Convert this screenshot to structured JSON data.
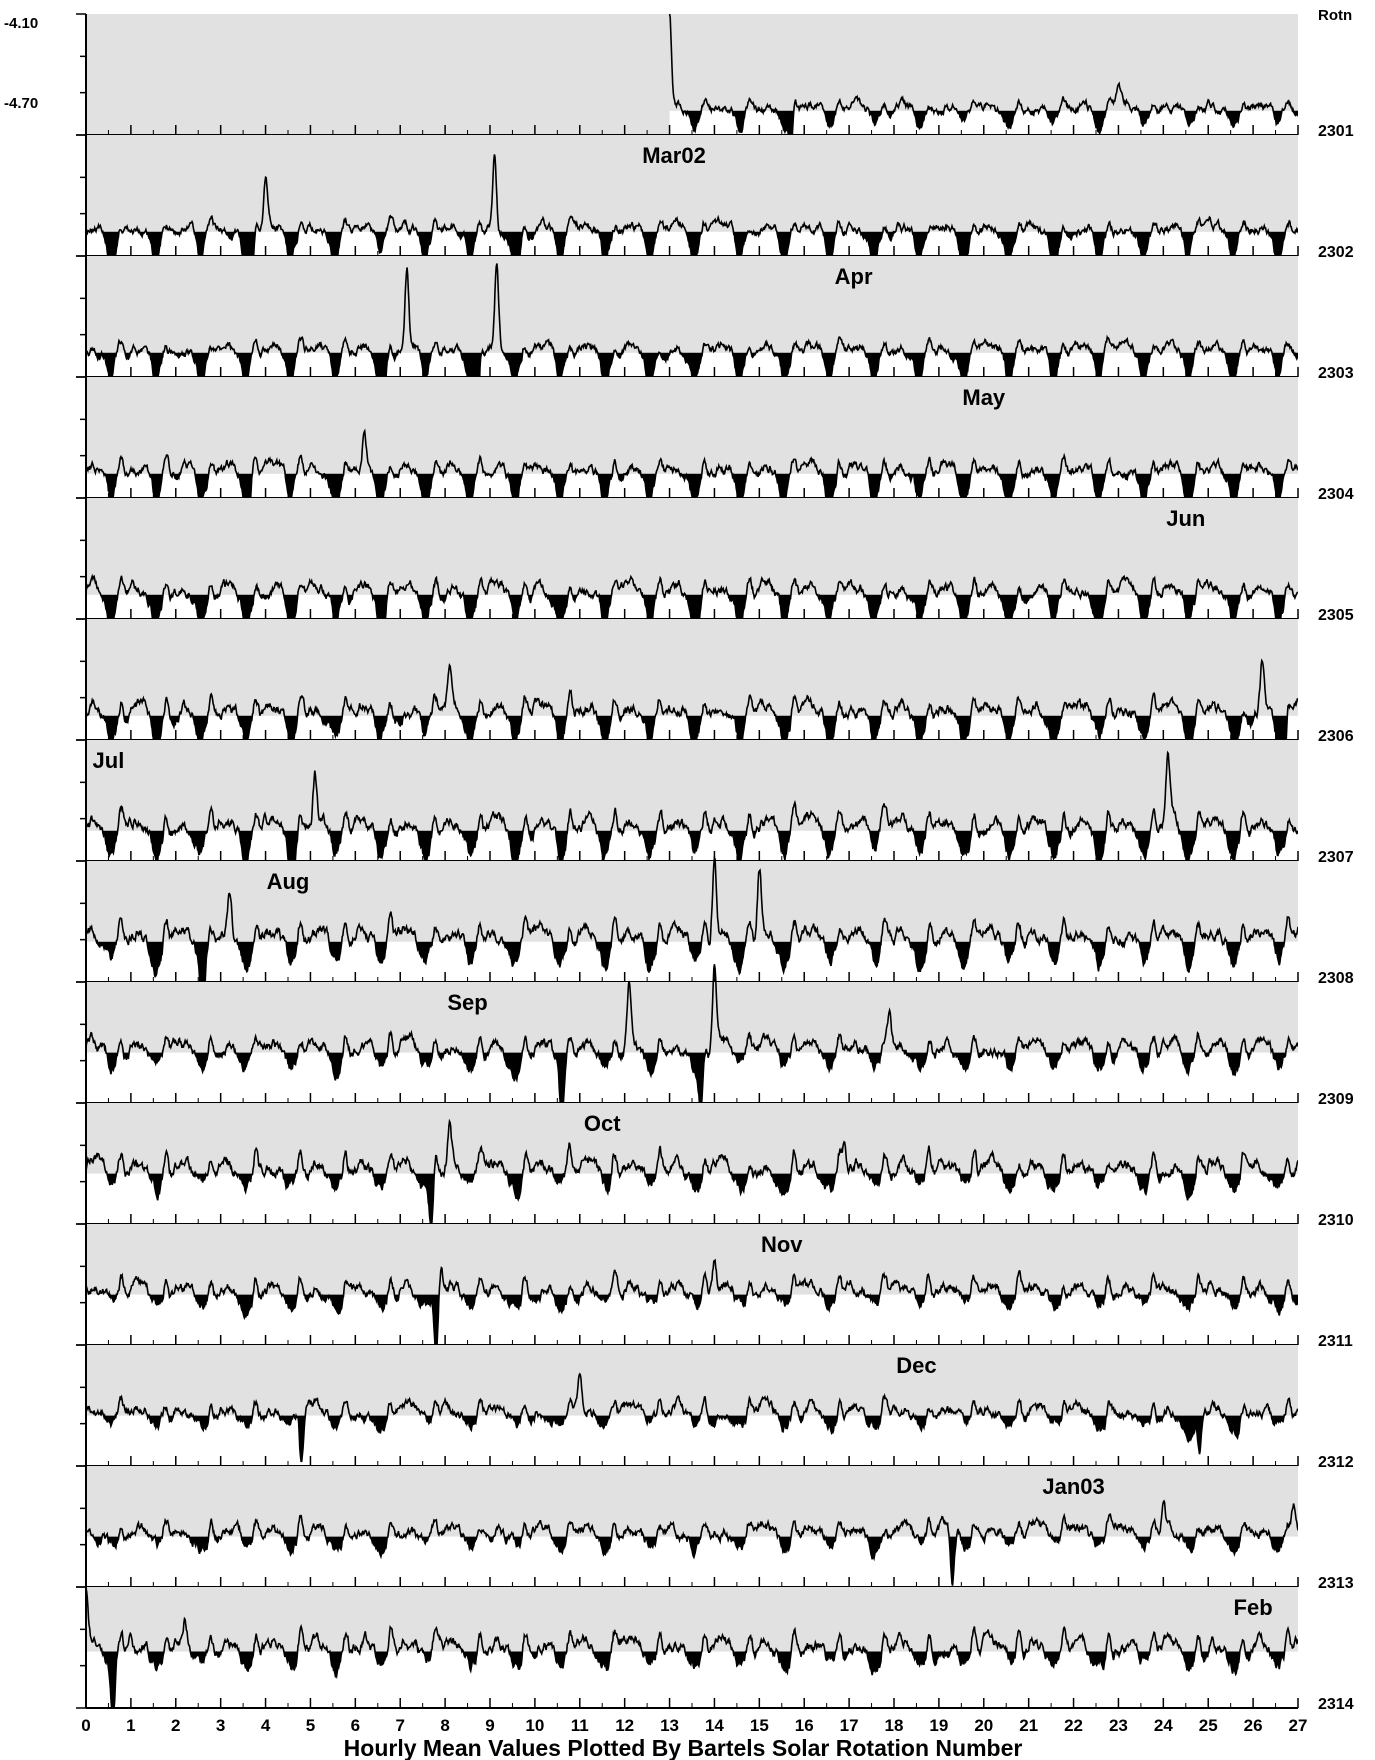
{
  "chart_data": {
    "type": "area",
    "title": "",
    "xlabel": "Hourly Mean Values Plotted By Bartels Solar Rotation Number",
    "ylabel": "",
    "xlim": [
      0,
      27
    ],
    "x_ticks": [
      "0",
      "1",
      "2",
      "3",
      "4",
      "5",
      "6",
      "7",
      "8",
      "9",
      "10",
      "11",
      "12",
      "13",
      "14",
      "15",
      "16",
      "17",
      "18",
      "19",
      "20",
      "21",
      "22",
      "23",
      "24",
      "25",
      "26",
      "27"
    ],
    "y_tick_labels": [
      "-4.10",
      "-4.70"
    ],
    "ylim_per_panel": [
      -4.7,
      -4.1
    ],
    "rotation_header": "Rotn",
    "rotations": [
      "2301",
      "2302",
      "2303",
      "2304",
      "2305",
      "2306",
      "2307",
      "2308",
      "2309",
      "2310",
      "2311",
      "2312",
      "2313",
      "2314"
    ],
    "month_labels": [
      {
        "text": "Mar02",
        "rotation": "2302",
        "day": 13.1
      },
      {
        "text": "Apr",
        "rotation": "2303",
        "day": 17.1
      },
      {
        "text": "May",
        "rotation": "2304",
        "day": 20.0
      },
      {
        "text": "Jun",
        "rotation": "2305",
        "day": 24.5
      },
      {
        "text": "Jul",
        "rotation": "2307",
        "day": 0.5
      },
      {
        "text": "Aug",
        "rotation": "2308",
        "day": 4.5
      },
      {
        "text": "Sep",
        "rotation": "2309",
        "day": 8.5
      },
      {
        "text": "Oct",
        "rotation": "2310",
        "day": 11.5
      },
      {
        "text": "Nov",
        "rotation": "2311",
        "day": 15.5
      },
      {
        "text": "Dec",
        "rotation": "2312",
        "day": 18.5
      },
      {
        "text": "Jan03",
        "rotation": "2313",
        "day": 22.0
      },
      {
        "text": "Feb",
        "rotation": "2314",
        "day": 26.0
      }
    ],
    "series_profile": [
      {
        "rotation": "2301",
        "start_day": 13.0,
        "baseline": -4.58,
        "amplitude": 0.05,
        "dip": 0.06,
        "spikes": [
          [
            13.0,
            -4.1
          ],
          [
            15.7,
            -4.75
          ],
          [
            23.0,
            -4.5
          ]
        ]
      },
      {
        "rotation": "2302",
        "start_day": 0,
        "baseline": -4.58,
        "amplitude": 0.06,
        "dip": 0.14,
        "spikes": [
          [
            4.0,
            -4.35
          ],
          [
            9.1,
            -4.2
          ],
          [
            3.7,
            -4.8
          ],
          [
            9.6,
            -4.8
          ]
        ]
      },
      {
        "rotation": "2303",
        "start_day": 0,
        "baseline": -4.58,
        "amplitude": 0.06,
        "dip": 0.14,
        "spikes": [
          [
            7.15,
            -4.2
          ],
          [
            9.15,
            -4.15
          ],
          [
            6.6,
            -5.1
          ],
          [
            8.7,
            -5.25
          ]
        ]
      },
      {
        "rotation": "2304",
        "start_day": 0,
        "baseline": -4.58,
        "amplitude": 0.08,
        "dip": 0.13,
        "spikes": [
          [
            3.6,
            -4.95
          ],
          [
            6.2,
            -4.4
          ]
        ]
      },
      {
        "rotation": "2305",
        "start_day": 0,
        "baseline": -4.58,
        "amplitude": 0.09,
        "dip": 0.12,
        "spikes": [
          [
            6.6,
            -4.85
          ]
        ]
      },
      {
        "rotation": "2306",
        "start_day": 0,
        "baseline": -4.58,
        "amplitude": 0.11,
        "dip": 0.1,
        "spikes": [
          [
            8.1,
            -4.35
          ],
          [
            26.2,
            -4.35
          ],
          [
            26.7,
            -4.8
          ]
        ]
      },
      {
        "rotation": "2307",
        "start_day": 0,
        "baseline": -4.55,
        "amplitude": 0.12,
        "dip": 0.09,
        "spikes": [
          [
            5.1,
            -4.3
          ],
          [
            24.1,
            -4.25
          ],
          [
            4.6,
            -4.8
          ]
        ]
      },
      {
        "rotation": "2308",
        "start_day": 0,
        "baseline": -4.5,
        "amplitude": 0.12,
        "dip": 0.08,
        "spikes": [
          [
            3.2,
            -4.3
          ],
          [
            14.0,
            -4.1
          ],
          [
            15.0,
            -4.15
          ],
          [
            2.6,
            -4.78
          ]
        ]
      },
      {
        "rotation": "2309",
        "start_day": 0,
        "baseline": -4.45,
        "amplitude": 0.1,
        "dip": 0.05,
        "spikes": [
          [
            12.1,
            -4.1
          ],
          [
            14.0,
            -4.05
          ],
          [
            17.9,
            -4.25
          ],
          [
            10.6,
            -4.75
          ],
          [
            13.7,
            -4.7
          ]
        ]
      },
      {
        "rotation": "2310",
        "start_day": 0,
        "baseline": -4.45,
        "amplitude": 0.13,
        "dip": 0.03,
        "spikes": [
          [
            8.1,
            -4.25
          ],
          [
            16.9,
            -4.25
          ],
          [
            7.7,
            -4.7
          ]
        ]
      },
      {
        "rotation": "2311",
        "start_day": 0,
        "baseline": -4.45,
        "amplitude": 0.1,
        "dip": 0.02,
        "spikes": [
          [
            7.9,
            -4.3
          ],
          [
            14.0,
            -4.3
          ],
          [
            7.8,
            -4.8
          ]
        ]
      },
      {
        "rotation": "2312",
        "start_day": 0,
        "baseline": -4.45,
        "amplitude": 0.09,
        "dip": 0.02,
        "spikes": [
          [
            11.0,
            -4.25
          ],
          [
            4.8,
            -4.78
          ],
          [
            24.8,
            -4.7
          ]
        ]
      },
      {
        "rotation": "2313",
        "start_day": 0,
        "baseline": -4.45,
        "amplitude": 0.09,
        "dip": 0.02,
        "spikes": [
          [
            24.0,
            -4.3
          ],
          [
            26.9,
            -4.3
          ],
          [
            19.3,
            -4.75
          ]
        ]
      },
      {
        "rotation": "2314",
        "start_day": 0,
        "baseline": -4.42,
        "amplitude": 0.12,
        "dip": 0.02,
        "spikes": [
          [
            0.0,
            -4.15
          ],
          [
            1.0,
            -4.3
          ],
          [
            2.2,
            -4.3
          ],
          [
            25.1,
            -4.35
          ],
          [
            0.6,
            -4.7
          ]
        ]
      }
    ],
    "colors": {
      "panel_fill": "#e1e1e1",
      "below_reference_fill": "#000000",
      "line": "#000000"
    },
    "grid": false
  }
}
